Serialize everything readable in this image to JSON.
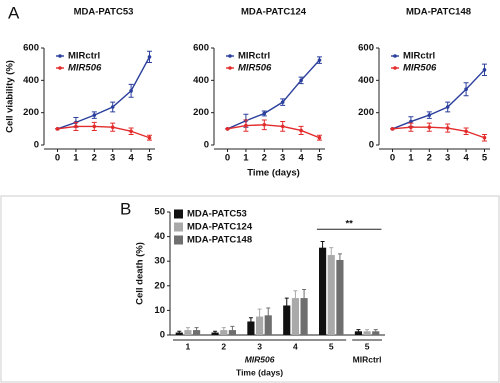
{
  "chart_data": [
    {
      "type": "line",
      "panel": "A",
      "title": "MDA-PATC53",
      "ylabel": "Cell viability (%)",
      "x": [
        0,
        1,
        2,
        3,
        4,
        5
      ],
      "xlim": [
        -0.3,
        5.3
      ],
      "xticks": [
        0,
        1,
        2,
        3,
        4,
        5
      ],
      "ylim": [
        0,
        600
      ],
      "yticks": [
        0,
        200,
        400,
        600
      ],
      "series": [
        {
          "name": "MIRctrl",
          "color": "#2b3f9c",
          "values": [
            100,
            140,
            185,
            235,
            335,
            545
          ],
          "errors": [
            0,
            30,
            20,
            30,
            40,
            35
          ]
        },
        {
          "name": "MIR506",
          "color": "#e32b2b",
          "italic": true,
          "values": [
            100,
            115,
            115,
            110,
            85,
            45
          ],
          "errors": [
            0,
            25,
            25,
            25,
            20,
            15
          ]
        }
      ]
    },
    {
      "type": "line",
      "title": "MDA-PATC124",
      "xlabel": "Time (days)",
      "x": [
        0,
        1,
        2,
        3,
        4,
        5
      ],
      "xlim": [
        -0.3,
        5.3
      ],
      "xticks": [
        0,
        1,
        2,
        3,
        4,
        5
      ],
      "ylim": [
        0,
        600
      ],
      "yticks": [
        0,
        200,
        400,
        600
      ],
      "series": [
        {
          "name": "MIRctrl",
          "color": "#2b3f9c",
          "values": [
            100,
            150,
            195,
            265,
            400,
            525
          ],
          "errors": [
            0,
            40,
            15,
            20,
            20,
            20
          ]
        },
        {
          "name": "MIR506",
          "color": "#e32b2b",
          "italic": true,
          "values": [
            100,
            120,
            125,
            115,
            90,
            45
          ],
          "errors": [
            0,
            35,
            30,
            30,
            25,
            15
          ]
        }
      ]
    },
    {
      "type": "line",
      "title": "MDA-PATC148",
      "x": [
        0,
        1,
        2,
        3,
        4,
        5
      ],
      "xlim": [
        -0.3,
        5.3
      ],
      "xticks": [
        0,
        1,
        2,
        3,
        4,
        5
      ],
      "ylim": [
        0,
        600
      ],
      "yticks": [
        0,
        200,
        400,
        600
      ],
      "series": [
        {
          "name": "MIRctrl",
          "color": "#2b3f9c",
          "values": [
            100,
            145,
            185,
            235,
            345,
            465
          ],
          "errors": [
            0,
            30,
            20,
            30,
            40,
            35
          ]
        },
        {
          "name": "MIR506",
          "color": "#e32b2b",
          "italic": true,
          "values": [
            100,
            110,
            110,
            105,
            85,
            45
          ],
          "errors": [
            0,
            25,
            25,
            25,
            20,
            20
          ]
        }
      ]
    },
    {
      "type": "bar",
      "panel": "B",
      "ylabel": "Cell death (%)",
      "xlabel": "Time (days)",
      "categories": [
        "1",
        "2",
        "3",
        "4",
        "5",
        "5"
      ],
      "category_groups": [
        {
          "name": "MIR506",
          "size": 5,
          "italic": true
        },
        {
          "name": "MIRctrl",
          "size": 1
        }
      ],
      "ylim": [
        0,
        50
      ],
      "yticks": [
        0,
        10,
        20,
        30,
        40,
        50
      ],
      "series": [
        {
          "name": "MDA-PATC53",
          "color": "#111111",
          "values": [
            1,
            1,
            5.5,
            12,
            35.5,
            1.5
          ],
          "errors": [
            0.5,
            0.5,
            1.5,
            3,
            2.5,
            0.7
          ]
        },
        {
          "name": "MDA-PATC124",
          "color": "#a9a9a9",
          "values": [
            2,
            2,
            7.5,
            15,
            32.5,
            1.5
          ],
          "errors": [
            1,
            1,
            3,
            3,
            3,
            0.7
          ]
        },
        {
          "name": "MDA-PATC148",
          "color": "#6f6f6f",
          "values": [
            2,
            2,
            8,
            15,
            30.5,
            1.5
          ],
          "errors": [
            1,
            1.5,
            3,
            3.5,
            2.5,
            0.7
          ]
        }
      ],
      "annotations": [
        {
          "text": "**",
          "y": 43,
          "categories": [
            4,
            5
          ]
        }
      ]
    }
  ]
}
